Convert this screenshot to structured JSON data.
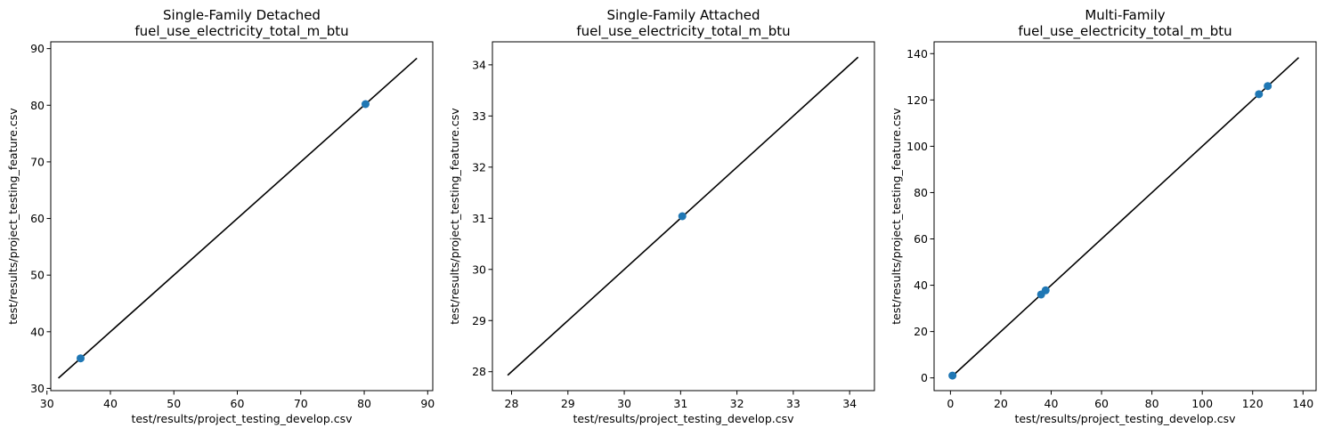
{
  "chart_data": [
    {
      "type": "scatter",
      "title": "Single-Family Detached",
      "subtitle": "fuel_use_electricity_total_m_btu",
      "xlabel": "test/results/project_testing_develop.csv",
      "ylabel": "test/results/project_testing_feature.csv",
      "xlim": [
        30.6,
        90.8
      ],
      "ylim": [
        29.6,
        91.2
      ],
      "xticks": [
        30,
        40,
        50,
        60,
        70,
        80,
        90
      ],
      "yticks": [
        30,
        40,
        50,
        60,
        70,
        80,
        90
      ],
      "grid": false,
      "points": [
        {
          "x": 35.3,
          "y": 35.3
        },
        {
          "x": 80.2,
          "y": 80.2
        }
      ],
      "reference_line": {
        "x": [
          31.8,
          88.3
        ],
        "y": [
          31.8,
          88.3
        ]
      },
      "colors": {
        "points": "#1f77b4",
        "line": "#000000"
      }
    },
    {
      "type": "scatter",
      "title": "Single-Family Attached",
      "subtitle": "fuel_use_electricity_total_m_btu",
      "xlabel": "test/results/project_testing_develop.csv",
      "ylabel": "test/results/project_testing_feature.csv",
      "xlim": [
        27.66,
        34.44
      ],
      "ylim": [
        27.63,
        34.45
      ],
      "xticks": [
        28,
        29,
        30,
        31,
        32,
        33,
        34
      ],
      "yticks": [
        28,
        29,
        30,
        31,
        32,
        33,
        34
      ],
      "grid": false,
      "points": [
        {
          "x": 31.03,
          "y": 31.04
        }
      ],
      "reference_line": {
        "x": [
          27.93,
          34.15
        ],
        "y": [
          27.93,
          34.15
        ]
      },
      "colors": {
        "points": "#1f77b4",
        "line": "#000000"
      }
    },
    {
      "type": "scatter",
      "title": "Multi-Family",
      "subtitle": "fuel_use_electricity_total_m_btu",
      "xlabel": "test/results/project_testing_develop.csv",
      "ylabel": "test/results/project_testing_feature.csv",
      "xlim": [
        -6.5,
        145.2
      ],
      "ylim": [
        -5.5,
        145.1
      ],
      "xticks": [
        0,
        20,
        40,
        60,
        80,
        100,
        120,
        140
      ],
      "yticks": [
        0,
        20,
        40,
        60,
        80,
        100,
        120,
        140
      ],
      "grid": false,
      "points": [
        {
          "x": 0.8,
          "y": 1.0
        },
        {
          "x": 36.0,
          "y": 36.0
        },
        {
          "x": 37.8,
          "y": 37.8
        },
        {
          "x": 122.5,
          "y": 122.5
        },
        {
          "x": 126.0,
          "y": 126.0
        }
      ],
      "reference_line": {
        "x": [
          0.5,
          138.3
        ],
        "y": [
          0.5,
          138.3
        ]
      },
      "colors": {
        "points": "#1f77b4",
        "line": "#000000"
      }
    }
  ]
}
